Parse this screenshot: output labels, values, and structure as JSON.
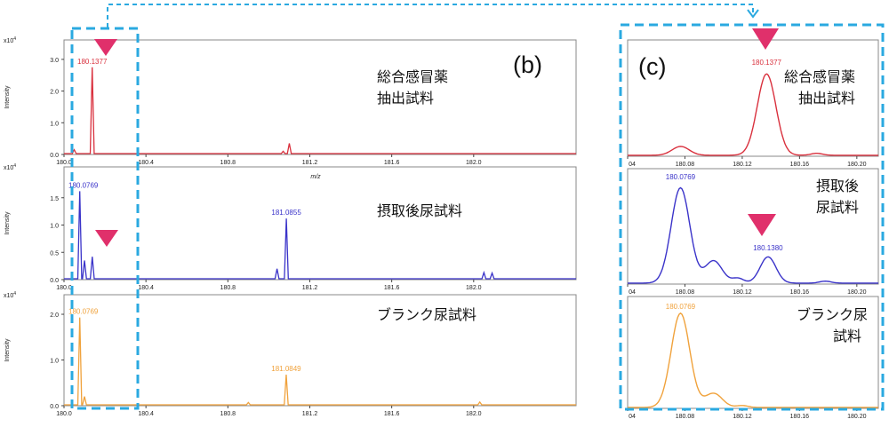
{
  "figure": {
    "panel_b_label": "(b)",
    "panel_c_label": "(c)",
    "ylabel": "Intensity",
    "xlabel": "m/z",
    "scale_base": "x10",
    "scale_exp": "4",
    "colors": {
      "row1": "#d9303d",
      "row2": "#3a33c9",
      "row3": "#f0a23c",
      "box": "#2aa9e0",
      "marker": "#e0306b"
    }
  },
  "annotations_b": {
    "row1_line1": "総合感冒薬",
    "row1_line2": "抽出試料",
    "row2": "摂取後尿試料",
    "row3": "ブランク尿試料"
  },
  "annotations_c": {
    "row1_line1": "総合感冒薬",
    "row1_line2": "抽出試料",
    "row2_line1": "摂取後",
    "row2_line2": "尿試料",
    "row3_line1": "ブランク尿",
    "row3_line2": "試料"
  },
  "chart_data": [
    {
      "type": "line",
      "panel": "b",
      "xlim": [
        180.0,
        182.5
      ],
      "xticks": [
        "180.0",
        "180.4",
        "180.8",
        "181.2",
        "181.6",
        "182.0"
      ],
      "xlabel": "m/z",
      "ylabel": "Intensity",
      "rows": [
        {
          "color": "#d9303d",
          "ylim": [
            0,
            3.5
          ],
          "yticks": [
            "0.0",
            "1.0",
            "2.0",
            "3.0"
          ],
          "peaks": [
            {
              "x": 180.1377,
              "y": 2.75,
              "label": "180.1377"
            },
            {
              "x": 180.05,
              "y": 0.15
            },
            {
              "x": 181.07,
              "y": 0.1
            },
            {
              "x": 181.1,
              "y": 0.35
            }
          ]
        },
        {
          "color": "#3a33c9",
          "ylim": [
            0,
            2.0
          ],
          "yticks": [
            "0.0",
            "0.5",
            "1.0",
            "1.5"
          ],
          "peaks": [
            {
              "x": 180.0769,
              "y": 1.62,
              "label": "180.0769"
            },
            {
              "x": 180.1,
              "y": 0.35
            },
            {
              "x": 180.138,
              "y": 0.42
            },
            {
              "x": 181.04,
              "y": 0.2
            },
            {
              "x": 181.0855,
              "y": 1.12,
              "label": "181.0855"
            },
            {
              "x": 182.05,
              "y": 0.13
            },
            {
              "x": 182.09,
              "y": 0.12
            }
          ]
        },
        {
          "color": "#f0a23c",
          "ylim": [
            0,
            2.35
          ],
          "yticks": [
            "0.0",
            "1.0",
            "2.0"
          ],
          "peaks": [
            {
              "x": 180.0769,
              "y": 1.93,
              "label": "180.0769"
            },
            {
              "x": 180.1,
              "y": 0.2
            },
            {
              "x": 180.9,
              "y": 0.07
            },
            {
              "x": 181.0849,
              "y": 0.68,
              "label": "181.0849"
            },
            {
              "x": 182.03,
              "y": 0.08
            }
          ]
        }
      ]
    },
    {
      "type": "line",
      "panel": "c",
      "xlim": [
        180.04,
        180.215
      ],
      "xticks": [
        "04",
        "180.08",
        "180.12",
        "180.16",
        "180.20"
      ],
      "rows": [
        {
          "color": "#d9303d",
          "ylim": [
            0,
            1.15
          ],
          "label": "180.1377",
          "peaks": [
            {
              "x": 180.077,
              "y": 0.09,
              "w": 0.006
            },
            {
              "x": 180.137,
              "y": 0.83,
              "w": 0.0065
            },
            {
              "x": 180.172,
              "y": 0.02,
              "w": 0.004
            }
          ]
        },
        {
          "color": "#3a33c9",
          "ylim": [
            0,
            1.15
          ],
          "label1": "180.0769",
          "label2": "180.1380",
          "peaks": [
            {
              "x": 180.0769,
              "y": 0.98,
              "w": 0.0065
            },
            {
              "x": 180.1,
              "y": 0.23,
              "w": 0.006
            },
            {
              "x": 180.117,
              "y": 0.05,
              "w": 0.004
            },
            {
              "x": 180.138,
              "y": 0.27,
              "w": 0.0055
            },
            {
              "x": 180.178,
              "y": 0.02,
              "w": 0.004
            }
          ]
        },
        {
          "color": "#f0a23c",
          "ylim": [
            0,
            1.15
          ],
          "label": "180.0769",
          "peaks": [
            {
              "x": 180.0769,
              "y": 1.0,
              "w": 0.0065
            },
            {
              "x": 180.1,
              "y": 0.15,
              "w": 0.006
            },
            {
              "x": 180.12,
              "y": 0.02,
              "w": 0.004
            }
          ]
        }
      ]
    }
  ]
}
